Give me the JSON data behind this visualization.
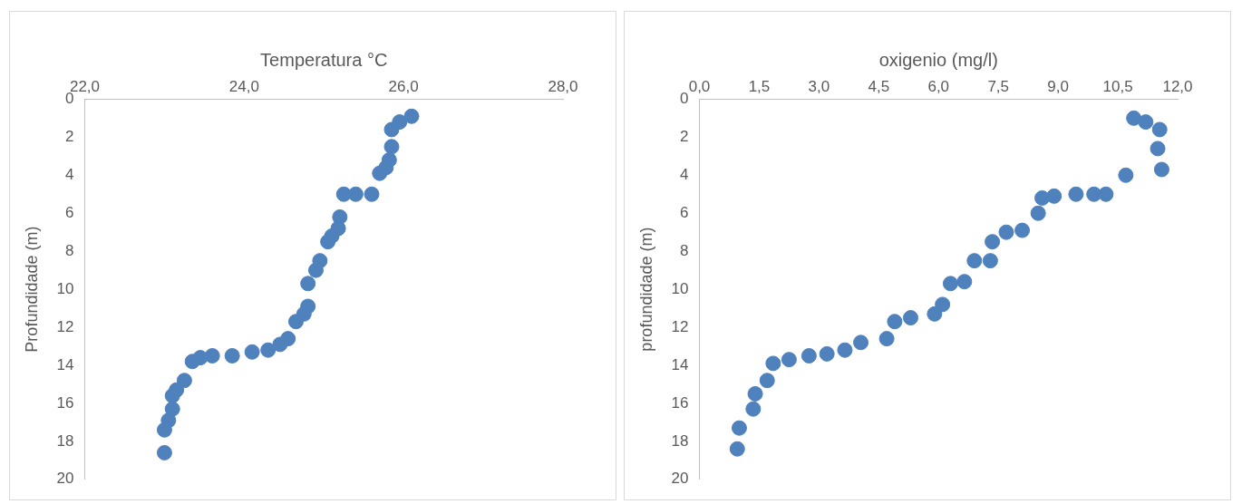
{
  "chart_data": [
    {
      "type": "scatter",
      "xlabel": "Temperatura °C",
      "ylabel": "Profundidade (m)",
      "xlim": [
        22,
        28
      ],
      "ylim": [
        20,
        0
      ],
      "xticks": [
        {
          "value": 22,
          "label": "22,0"
        },
        {
          "value": 24,
          "label": "24,0"
        },
        {
          "value": 26,
          "label": "26,0"
        },
        {
          "value": 28,
          "label": "28,0"
        }
      ],
      "yticks": [
        0,
        2,
        4,
        6,
        8,
        10,
        12,
        14,
        16,
        18,
        20
      ],
      "grid": false,
      "legend": false,
      "marker": "circle",
      "series": [
        {
          "color": "#4f81bd",
          "x": [
            26.1,
            25.95,
            25.85,
            25.85,
            25.82,
            25.78,
            25.7,
            25.6,
            25.4,
            25.25,
            25.2,
            25.18,
            25.1,
            25.05,
            24.95,
            24.9,
            24.8,
            24.8,
            24.75,
            24.65,
            24.55,
            24.45,
            24.3,
            24.1,
            23.85,
            23.6,
            23.45,
            23.35,
            23.25,
            23.15,
            23.1,
            23.1,
            23.05,
            23.0,
            23.0
          ],
          "values": [
            0.9,
            1.2,
            1.6,
            2.5,
            3.2,
            3.6,
            3.9,
            5.0,
            5.0,
            5.0,
            6.2,
            6.8,
            7.2,
            7.5,
            8.5,
            9.0,
            9.7,
            10.9,
            11.3,
            11.7,
            12.6,
            12.9,
            13.2,
            13.3,
            13.5,
            13.5,
            13.6,
            13.8,
            14.8,
            15.3,
            15.6,
            16.3,
            16.9,
            17.4,
            18.6
          ]
        }
      ]
    },
    {
      "type": "scatter",
      "xlabel": "oxigenio (mg/l)",
      "ylabel": "profundidade (m)",
      "xlim": [
        0,
        12
      ],
      "ylim": [
        20,
        0
      ],
      "xticks": [
        {
          "value": 0,
          "label": "0,0"
        },
        {
          "value": 1.5,
          "label": "1,5"
        },
        {
          "value": 3,
          "label": "3,0"
        },
        {
          "value": 4.5,
          "label": "4,5"
        },
        {
          "value": 6,
          "label": "6,0"
        },
        {
          "value": 7.5,
          "label": "7,5"
        },
        {
          "value": 9,
          "label": "9,0"
        },
        {
          "value": 10.5,
          "label": "10,5"
        },
        {
          "value": 12,
          "label": "12,0"
        }
      ],
      "yticks": [
        0,
        2,
        4,
        6,
        8,
        10,
        12,
        14,
        16,
        18,
        20
      ],
      "grid": false,
      "legend": false,
      "marker": "circle",
      "series": [
        {
          "color": "#4f81bd",
          "x": [
            10.9,
            11.2,
            11.55,
            11.5,
            11.6,
            10.7,
            10.2,
            9.9,
            9.45,
            8.9,
            8.6,
            8.5,
            8.1,
            7.7,
            7.35,
            7.3,
            6.9,
            6.65,
            6.3,
            6.1,
            5.9,
            5.3,
            4.9,
            4.7,
            4.05,
            3.65,
            3.2,
            2.75,
            2.25,
            1.85,
            1.7,
            1.4,
            1.35,
            1.0,
            0.95
          ],
          "values": [
            1.0,
            1.2,
            1.6,
            2.6,
            3.7,
            4.0,
            5.0,
            5.0,
            5.0,
            5.1,
            5.2,
            6.0,
            6.9,
            7.0,
            7.5,
            8.5,
            8.5,
            9.6,
            9.7,
            10.8,
            11.3,
            11.5,
            11.7,
            12.6,
            12.8,
            13.2,
            13.4,
            13.5,
            13.7,
            13.9,
            14.8,
            15.5,
            16.3,
            17.3,
            18.4
          ]
        }
      ]
    }
  ]
}
